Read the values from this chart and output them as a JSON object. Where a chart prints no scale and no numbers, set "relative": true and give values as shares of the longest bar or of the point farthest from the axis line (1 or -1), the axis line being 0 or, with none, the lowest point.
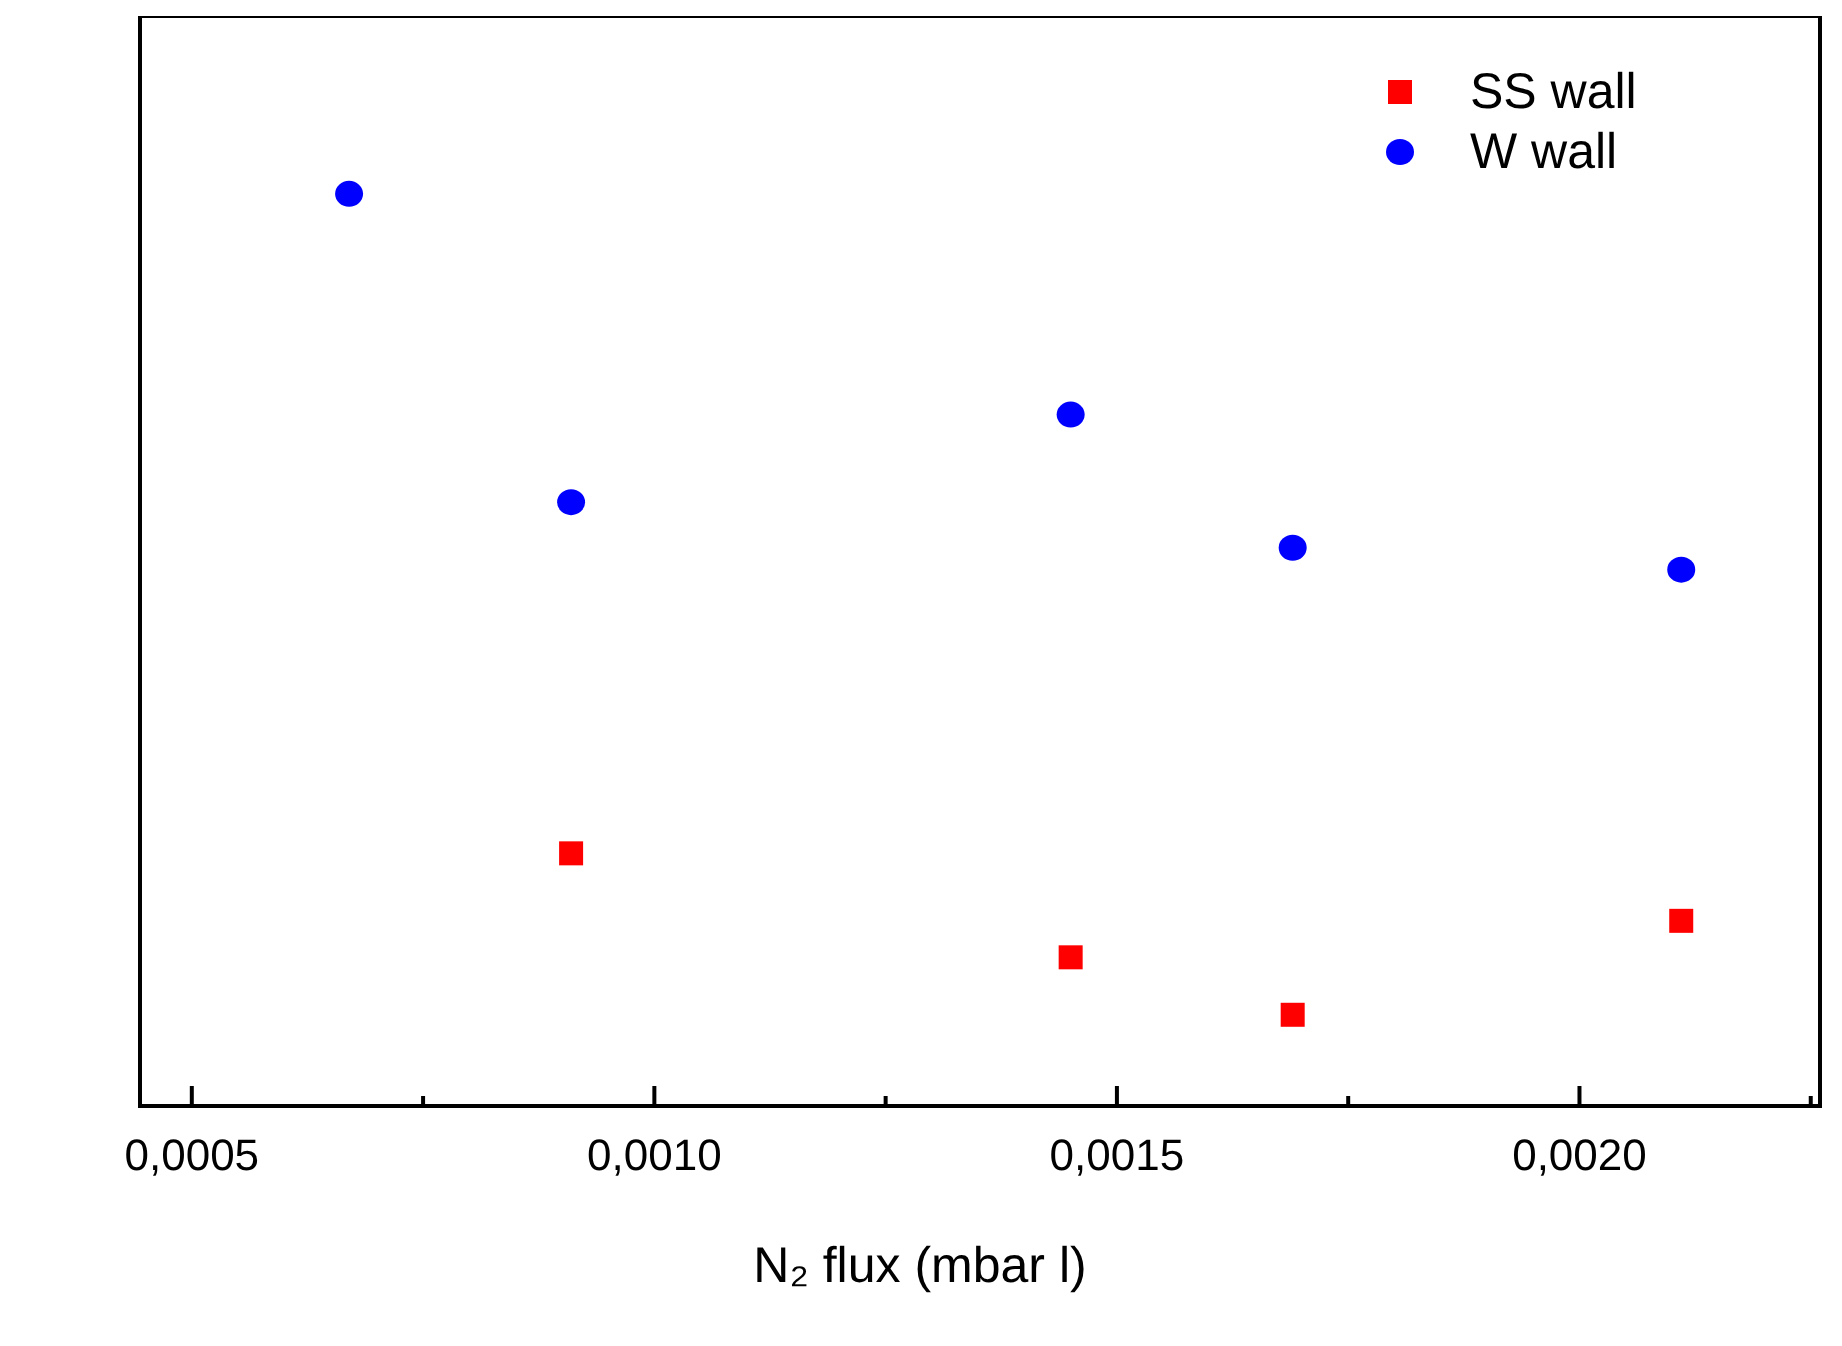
{
  "chart_data": {
    "type": "scatter",
    "relative": true,
    "xlabel": "N₂ flux (mbar l)",
    "xlim": [
      0.000444,
      0.00226
    ],
    "xticks": [
      {
        "value": 0.0005,
        "label": "0,0005"
      },
      {
        "value": 0.001,
        "label": "0,0010"
      },
      {
        "value": 0.0015,
        "label": "0,0015"
      },
      {
        "value": 0.002,
        "label": "0,0020"
      }
    ],
    "legend": "top right",
    "grid": false,
    "series": [
      {
        "name": "SS wall",
        "color": "#ff0000",
        "marker": "square",
        "x": [
          0.00091,
          0.00145,
          0.00169,
          0.00211
        ],
        "values": [
          0.277,
          0.163,
          0.1,
          0.203
        ]
      },
      {
        "name": "W wall",
        "color": "#0000ff",
        "marker": "circle",
        "x": [
          0.00067,
          0.00091,
          0.00145,
          0.00169,
          0.00211
        ],
        "values": [
          1,
          0.662,
          0.758,
          0.612,
          0.588
        ]
      }
    ]
  }
}
